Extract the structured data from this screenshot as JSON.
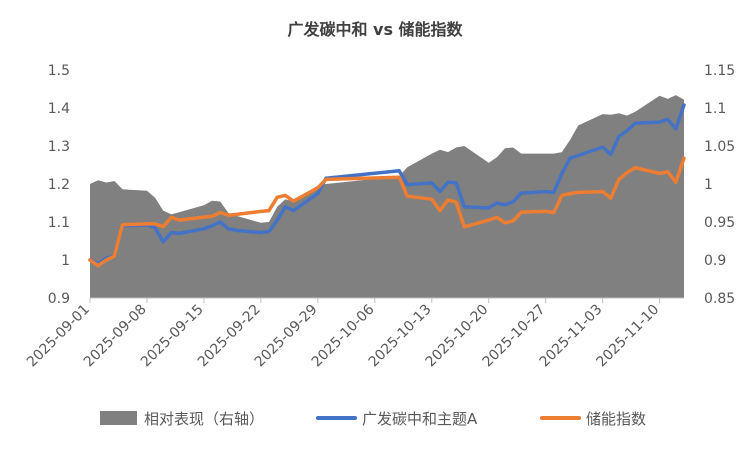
{
  "chart_data": {
    "type": "line",
    "title": "广发碳中和 vs 储能指数",
    "x_tick_labels": [
      "2025-09-01",
      "2025-09-08",
      "2025-09-15",
      "2025-09-22",
      "2025-09-29",
      "2025-10-06",
      "2025-10-13",
      "2025-10-20",
      "2025-10-27",
      "2025-11-03",
      "2025-11-10"
    ],
    "x_range": [
      "2025-09-01",
      "2025-11-13"
    ],
    "y_left": {
      "range": [
        0.9,
        1.5
      ],
      "ticks": [
        "0.9",
        "1",
        "1.1",
        "1.2",
        "1.3",
        "1.4",
        "1.5"
      ]
    },
    "y_right": {
      "range": [
        0.85,
        1.15
      ],
      "ticks": [
        "0.85",
        "0.9",
        "0.95",
        "1",
        "1.05",
        "1.1",
        "1.15"
      ]
    },
    "legend_position": "bottom",
    "grid": false,
    "series": [
      {
        "name": "相对表现（右轴）",
        "kind": "area",
        "axis": "right",
        "color": "#808080",
        "points": [
          [
            "2025-09-01",
            1.0
          ],
          [
            "2025-09-02",
            1.005
          ],
          [
            "2025-09-03",
            1.002
          ],
          [
            "2025-09-04",
            1.004
          ],
          [
            "2025-09-05",
            0.993
          ],
          [
            "2025-09-08",
            0.991
          ],
          [
            "2025-09-09",
            0.982
          ],
          [
            "2025-09-10",
            0.965
          ],
          [
            "2025-09-11",
            0.96
          ],
          [
            "2025-09-12",
            0.963
          ],
          [
            "2025-09-15",
            0.972
          ],
          [
            "2025-09-16",
            0.978
          ],
          [
            "2025-09-17",
            0.977
          ],
          [
            "2025-09-18",
            0.962
          ],
          [
            "2025-09-19",
            0.958
          ],
          [
            "2025-09-22",
            0.949
          ],
          [
            "2025-09-23",
            0.95
          ],
          [
            "2025-09-24",
            0.97
          ],
          [
            "2025-09-25",
            0.98
          ],
          [
            "2025-09-26",
            0.977
          ],
          [
            "2025-09-29",
            0.998
          ],
          [
            "2025-09-30",
            1.0
          ],
          [
            "2025-10-09",
            1.01
          ],
          [
            "2025-10-10",
            1.022
          ],
          [
            "2025-10-13",
            1.04
          ],
          [
            "2025-10-14",
            1.045
          ],
          [
            "2025-10-15",
            1.042
          ],
          [
            "2025-10-16",
            1.048
          ],
          [
            "2025-10-17",
            1.05
          ],
          [
            "2025-10-20",
            1.028
          ],
          [
            "2025-10-21",
            1.035
          ],
          [
            "2025-10-22",
            1.047
          ],
          [
            "2025-10-23",
            1.048
          ],
          [
            "2025-10-24",
            1.04
          ],
          [
            "2025-10-27",
            1.04
          ],
          [
            "2025-10-28",
            1.04
          ],
          [
            "2025-10-29",
            1.042
          ],
          [
            "2025-10-30",
            1.058
          ],
          [
            "2025-10-31",
            1.077
          ],
          [
            "2025-11-03",
            1.092
          ],
          [
            "2025-11-04",
            1.091
          ],
          [
            "2025-11-05",
            1.093
          ],
          [
            "2025-11-06",
            1.09
          ],
          [
            "2025-11-07",
            1.095
          ],
          [
            "2025-11-10",
            1.116
          ],
          [
            "2025-11-11",
            1.112
          ],
          [
            "2025-11-12",
            1.117
          ],
          [
            "2025-11-13",
            1.111
          ]
        ]
      },
      {
        "name": "广发碳中和主题A",
        "kind": "line",
        "axis": "left",
        "color": "#4472C4",
        "points": [
          [
            "2025-09-01",
            1.0
          ],
          [
            "2025-09-02",
            0.99
          ],
          [
            "2025-09-03",
            1.005
          ],
          [
            "2025-09-04",
            1.01
          ],
          [
            "2025-09-05",
            1.09
          ],
          [
            "2025-09-08",
            1.092
          ],
          [
            "2025-09-09",
            1.085
          ],
          [
            "2025-09-10",
            1.048
          ],
          [
            "2025-09-11",
            1.072
          ],
          [
            "2025-09-12",
            1.07
          ],
          [
            "2025-09-15",
            1.082
          ],
          [
            "2025-09-16",
            1.09
          ],
          [
            "2025-09-17",
            1.1
          ],
          [
            "2025-09-18",
            1.082
          ],
          [
            "2025-09-19",
            1.078
          ],
          [
            "2025-09-22",
            1.072
          ],
          [
            "2025-09-23",
            1.075
          ],
          [
            "2025-09-24",
            1.105
          ],
          [
            "2025-09-25",
            1.14
          ],
          [
            "2025-09-26",
            1.13
          ],
          [
            "2025-09-29",
            1.175
          ],
          [
            "2025-09-30",
            1.215
          ],
          [
            "2025-10-09",
            1.235
          ],
          [
            "2025-10-10",
            1.198
          ],
          [
            "2025-10-13",
            1.203
          ],
          [
            "2025-10-14",
            1.18
          ],
          [
            "2025-10-15",
            1.205
          ],
          [
            "2025-10-16",
            1.203
          ],
          [
            "2025-10-17",
            1.14
          ],
          [
            "2025-10-20",
            1.137
          ],
          [
            "2025-10-21",
            1.15
          ],
          [
            "2025-10-22",
            1.145
          ],
          [
            "2025-10-23",
            1.153
          ],
          [
            "2025-10-24",
            1.176
          ],
          [
            "2025-10-27",
            1.18
          ],
          [
            "2025-10-28",
            1.178
          ],
          [
            "2025-10-29",
            1.228
          ],
          [
            "2025-10-30",
            1.268
          ],
          [
            "2025-10-31",
            1.275
          ],
          [
            "2025-11-03",
            1.297
          ],
          [
            "2025-11-04",
            1.278
          ],
          [
            "2025-11-05",
            1.325
          ],
          [
            "2025-11-06",
            1.34
          ],
          [
            "2025-11-07",
            1.36
          ],
          [
            "2025-11-10",
            1.363
          ],
          [
            "2025-11-11",
            1.37
          ],
          [
            "2025-11-12",
            1.345
          ],
          [
            "2025-11-13",
            1.408
          ]
        ]
      },
      {
        "name": "储能指数",
        "kind": "line",
        "axis": "left",
        "color": "#ED7D31",
        "points": [
          [
            "2025-09-01",
            1.0
          ],
          [
            "2025-09-02",
            0.985
          ],
          [
            "2025-09-03",
            1.0
          ],
          [
            "2025-09-04",
            1.01
          ],
          [
            "2025-09-05",
            1.093
          ],
          [
            "2025-09-08",
            1.095
          ],
          [
            "2025-09-09",
            1.095
          ],
          [
            "2025-09-10",
            1.088
          ],
          [
            "2025-09-11",
            1.112
          ],
          [
            "2025-09-12",
            1.105
          ],
          [
            "2025-09-15",
            1.113
          ],
          [
            "2025-09-16",
            1.115
          ],
          [
            "2025-09-17",
            1.125
          ],
          [
            "2025-09-18",
            1.118
          ],
          [
            "2025-09-19",
            1.12
          ],
          [
            "2025-09-22",
            1.128
          ],
          [
            "2025-09-23",
            1.13
          ],
          [
            "2025-09-24",
            1.165
          ],
          [
            "2025-09-25",
            1.17
          ],
          [
            "2025-09-26",
            1.155
          ],
          [
            "2025-09-29",
            1.19
          ],
          [
            "2025-09-30",
            1.212
          ],
          [
            "2025-10-09",
            1.218
          ],
          [
            "2025-10-10",
            1.168
          ],
          [
            "2025-10-13",
            1.16
          ],
          [
            "2025-10-14",
            1.13
          ],
          [
            "2025-10-15",
            1.158
          ],
          [
            "2025-10-16",
            1.152
          ],
          [
            "2025-10-17",
            1.087
          ],
          [
            "2025-10-20",
            1.105
          ],
          [
            "2025-10-21",
            1.112
          ],
          [
            "2025-10-22",
            1.098
          ],
          [
            "2025-10-23",
            1.103
          ],
          [
            "2025-10-24",
            1.126
          ],
          [
            "2025-10-27",
            1.128
          ],
          [
            "2025-10-28",
            1.125
          ],
          [
            "2025-10-29",
            1.17
          ],
          [
            "2025-10-30",
            1.175
          ],
          [
            "2025-10-31",
            1.178
          ],
          [
            "2025-11-03",
            1.18
          ],
          [
            "2025-11-04",
            1.163
          ],
          [
            "2025-11-05",
            1.212
          ],
          [
            "2025-11-06",
            1.23
          ],
          [
            "2025-11-07",
            1.243
          ],
          [
            "2025-11-10",
            1.228
          ],
          [
            "2025-11-11",
            1.232
          ],
          [
            "2025-11-12",
            1.205
          ],
          [
            "2025-11-13",
            1.268
          ]
        ]
      }
    ]
  }
}
